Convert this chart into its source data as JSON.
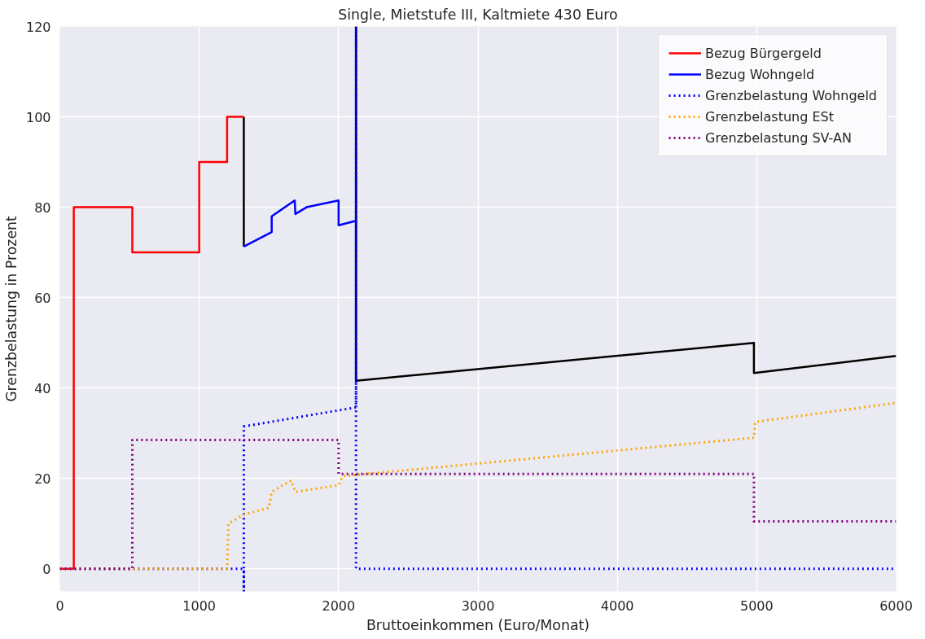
{
  "chart_data": {
    "type": "line",
    "title": "Single, Mietstufe III, Kaltmiete 430 Euro",
    "xlabel": "Bruttoeinkommen (Euro/Monat)",
    "ylabel": "Grenzbelastung in Prozent",
    "xlim": [
      0,
      6000
    ],
    "ylim": [
      -5,
      120
    ],
    "xticks": [
      0,
      1000,
      2000,
      3000,
      4000,
      5000,
      6000
    ],
    "yticks": [
      0,
      20,
      40,
      60,
      80,
      100,
      120
    ],
    "grid": true,
    "legend": "top right",
    "marker": "none",
    "series": [
      {
        "color": "#000000",
        "line_style": "solid",
        "x": [
          1320,
          1320,
          1700,
          2125,
          2125,
          4980,
          4980,
          6000
        ],
        "values": [
          100,
          71.3,
          null,
          120,
          41.6,
          50,
          43.3,
          47.1
        ]
      },
      {
        "name": "Bezug Bürgergeld",
        "color": "#ff0000",
        "line_style": "solid",
        "x": [
          0,
          100,
          100,
          520,
          520,
          1000,
          1000,
          1200,
          1200,
          1320
        ],
        "values": [
          0,
          0,
          80,
          80,
          70,
          70,
          90,
          90,
          100,
          100
        ]
      },
      {
        "name": "Bezug Wohngeld",
        "color": "#0000ff",
        "line_style": "solid",
        "x": [
          1320,
          1520,
          1520,
          1685,
          1690,
          1770,
          2000,
          2000,
          2125
        ],
        "values": [
          71.3,
          74.5,
          78,
          81.5,
          78.5,
          80,
          81.5,
          76,
          77
        ]
      },
      {
        "name": "Grenzbelastung Wohngeld",
        "color": "#0000ff",
        "line_style": "dotted",
        "x": [
          0,
          1320,
          1320,
          1320,
          2125,
          2125,
          2125,
          6000
        ],
        "values": [
          0,
          0,
          -5,
          31.5,
          35.7,
          120,
          0,
          0
        ]
      },
      {
        "name": "Grenzbelastung ESt",
        "color": "#ffa500",
        "line_style": "dotted",
        "x": [
          0,
          1200,
          1210,
          1320,
          1500,
          1520,
          1600,
          1660,
          1690,
          2000,
          2030,
          4980,
          4990,
          6000
        ],
        "values": [
          0,
          0,
          10,
          12,
          13.5,
          17,
          18.5,
          19.5,
          17,
          18.5,
          20.5,
          29,
          32.5,
          36.7
        ]
      },
      {
        "name": "Grenzbelastung SV-AN",
        "color": "#800080",
        "line_style": "dotted",
        "x": [
          0,
          520,
          520,
          2000,
          2000,
          4980,
          4980,
          6000
        ],
        "values": [
          0,
          0,
          28.5,
          28.5,
          21,
          21,
          10.5,
          10.5
        ]
      }
    ]
  }
}
